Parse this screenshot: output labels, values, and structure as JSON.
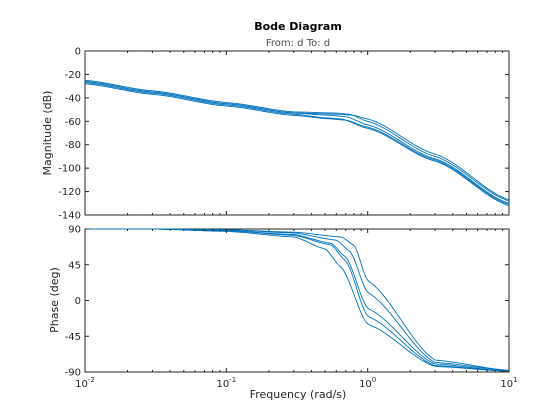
{
  "chart_data": {
    "type": "line",
    "title": "Bode Diagram",
    "subtitle": "From: d  To: d",
    "xlabel": "Frequency  (rad/s)",
    "x_scale": "log",
    "xlim": [
      0.01,
      10
    ],
    "line_color": "#0072BD",
    "magnitude": {
      "ylabel": "Magnitude (dB)",
      "ylim": [
        -140,
        0
      ],
      "yticks": [
        "0",
        "-20",
        "-40",
        "-60",
        "-80",
        "-100",
        "-120",
        "-140"
      ]
    },
    "phase": {
      "ylabel": "Phase (deg)",
      "ylim": [
        -90,
        90
      ],
      "yticks": [
        "90",
        "45",
        "0",
        "-45",
        "-90"
      ]
    },
    "series": [
      {
        "x": [
          0.01,
          0.03,
          0.1,
          0.3,
          0.55,
          0.7,
          1.0,
          3.0,
          10.0
        ],
        "magnitude_db": [
          -26,
          -35,
          -45,
          -53,
          -55,
          -56,
          -63,
          -92,
          -130
        ],
        "phase_deg": [
          90,
          90,
          88,
          83,
          72,
          55,
          -10,
          -80,
          -89
        ]
      },
      {
        "x": [
          0.01,
          0.03,
          0.1,
          0.3,
          0.6,
          0.75,
          1.0,
          3.0,
          10.0
        ],
        "magnitude_db": [
          -25,
          -34,
          -44,
          -52,
          -53,
          -54,
          -60,
          -90,
          -128
        ],
        "phase_deg": [
          90,
          90,
          89,
          85,
          76,
          62,
          10,
          -78,
          -88
        ]
      },
      {
        "x": [
          0.01,
          0.03,
          0.1,
          0.3,
          0.5,
          0.65,
          1.0,
          3.0,
          10.0
        ],
        "magnitude_db": [
          -27,
          -36,
          -46,
          -54,
          -57,
          -58,
          -66,
          -94,
          -132
        ],
        "phase_deg": [
          90,
          90,
          87,
          80,
          65,
          42,
          -30,
          -83,
          -89
        ]
      },
      {
        "x": [
          0.01,
          0.03,
          0.1,
          0.3,
          0.65,
          0.8,
          1.0,
          3.0,
          10.0
        ],
        "magnitude_db": [
          -26,
          -35,
          -45,
          -53,
          -54,
          -55,
          -58,
          -88,
          -127
        ],
        "phase_deg": [
          90,
          90,
          89,
          86,
          80,
          70,
          25,
          -75,
          -88
        ]
      },
      {
        "x": [
          0.01,
          0.03,
          0.1,
          0.3,
          0.55,
          0.7,
          1.0,
          3.0,
          10.0
        ],
        "magnitude_db": [
          -28,
          -37,
          -47,
          -55,
          -58,
          -59,
          -65,
          -93,
          -131
        ],
        "phase_deg": [
          90,
          90,
          88,
          82,
          70,
          50,
          -20,
          -82,
          -89
        ]
      }
    ]
  }
}
